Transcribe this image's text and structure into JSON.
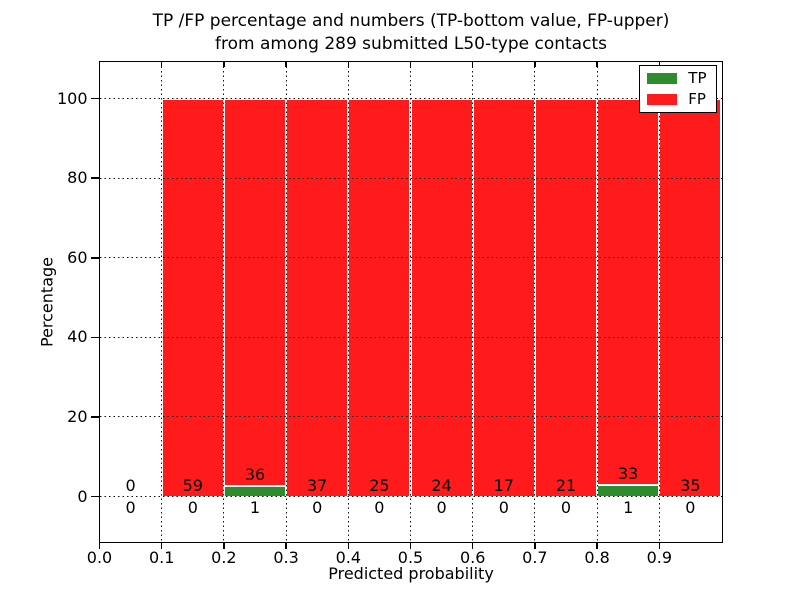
{
  "title": {
    "line1": "TP /FP percentage and numbers (TP-bottom value, FP-upper)",
    "line2": "from among 289 submitted L50-type contacts"
  },
  "axes": {
    "xlabel": "Predicted probability",
    "ylabel": "Percentage"
  },
  "legend": {
    "items": [
      {
        "label": "TP",
        "color": "#2e8b2e"
      },
      {
        "label": "FP",
        "color": "#ff1b1b"
      }
    ]
  },
  "chart_data": {
    "type": "bar",
    "stacked": true,
    "title": "TP /FP percentage and numbers (TP-bottom value, FP-upper) from among 289 submitted L50-type contacts",
    "xlabel": "Predicted probability",
    "ylabel": "Percentage",
    "xlim": [
      0.0,
      1.0
    ],
    "ylim": [
      -11.3,
      109.3
    ],
    "grid": "dotted, both axes, drawn over bars",
    "legend_position": "upper right",
    "total_contacts": 289,
    "x_tick_labels": [
      "0.0",
      "0.1",
      "0.2",
      "0.3",
      "0.4",
      "0.5",
      "0.6",
      "0.7",
      "0.8",
      "0.9"
    ],
    "y_tick_values": [
      0,
      20,
      40,
      60,
      80,
      100
    ],
    "series": [
      {
        "name": "TP",
        "color": "#2e8b2e"
      },
      {
        "name": "FP",
        "color": "#ff1b1b"
      }
    ],
    "bins": [
      {
        "range": [
          0.0,
          0.1
        ],
        "tp_count": 0,
        "fp_count": 0,
        "tp_pct": 0,
        "fp_pct": 0
      },
      {
        "range": [
          0.1,
          0.2
        ],
        "tp_count": 0,
        "fp_count": 59,
        "tp_pct": 0,
        "fp_pct": 100
      },
      {
        "range": [
          0.2,
          0.3
        ],
        "tp_count": 1,
        "fp_count": 36,
        "tp_pct": 2.7,
        "fp_pct": 97.3
      },
      {
        "range": [
          0.3,
          0.4
        ],
        "tp_count": 0,
        "fp_count": 37,
        "tp_pct": 0,
        "fp_pct": 100
      },
      {
        "range": [
          0.4,
          0.5
        ],
        "tp_count": 0,
        "fp_count": 25,
        "tp_pct": 0,
        "fp_pct": 100
      },
      {
        "range": [
          0.5,
          0.6
        ],
        "tp_count": 0,
        "fp_count": 24,
        "tp_pct": 0,
        "fp_pct": 100
      },
      {
        "range": [
          0.6,
          0.7
        ],
        "tp_count": 0,
        "fp_count": 17,
        "tp_pct": 0,
        "fp_pct": 100
      },
      {
        "range": [
          0.7,
          0.8
        ],
        "tp_count": 0,
        "fp_count": 21,
        "tp_pct": 0,
        "fp_pct": 100
      },
      {
        "range": [
          0.8,
          0.9
        ],
        "tp_count": 1,
        "fp_count": 33,
        "tp_pct": 2.94,
        "fp_pct": 97.06
      },
      {
        "range": [
          0.9,
          1.0
        ],
        "tp_count": 0,
        "fp_count": 35,
        "tp_pct": 0,
        "fp_pct": 100
      }
    ]
  }
}
